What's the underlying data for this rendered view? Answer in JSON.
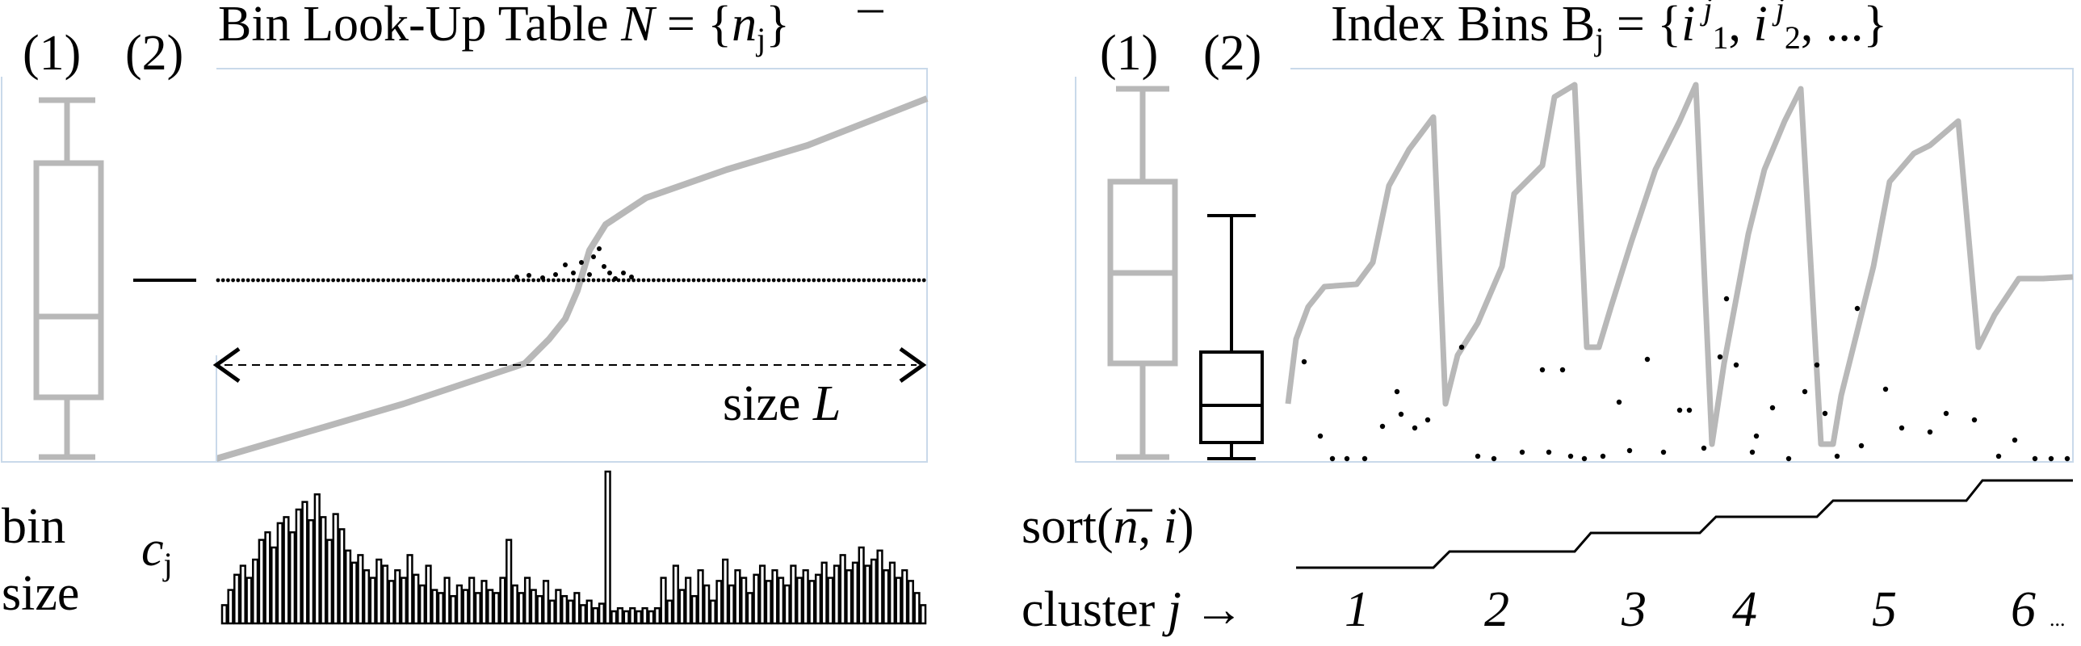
{
  "left_panel": {
    "label_1": "(1)",
    "label_2": "(2)",
    "title": {
      "prefix": "Bin Look-Up Table ",
      "N": "N",
      "equals": " = {",
      "n": "n",
      "sub_j": "j",
      "close": "}"
    },
    "size_label": {
      "text": "size ",
      "L": "L"
    },
    "bin_size": {
      "line1": "bin",
      "line2": "size"
    },
    "cj": {
      "c": "c",
      "sub_j": "j"
    },
    "histogram_values": [
      0.12,
      0.22,
      0.32,
      0.38,
      0.3,
      0.42,
      0.55,
      0.6,
      0.5,
      0.66,
      0.7,
      0.6,
      0.75,
      0.8,
      0.68,
      0.85,
      0.7,
      0.55,
      0.72,
      0.62,
      0.48,
      0.4,
      0.45,
      0.35,
      0.3,
      0.42,
      0.38,
      0.28,
      0.35,
      0.3,
      0.45,
      0.32,
      0.25,
      0.38,
      0.22,
      0.2,
      0.3,
      0.18,
      0.25,
      0.22,
      0.3,
      0.2,
      0.28,
      0.22,
      0.2,
      0.3,
      0.55,
      0.25,
      0.2,
      0.3,
      0.22,
      0.18,
      0.28,
      0.15,
      0.22,
      0.18,
      0.15,
      0.2,
      0.12,
      0.15,
      0.1,
      0.13,
      1.0,
      0.08,
      0.1,
      0.08,
      0.1,
      0.08,
      0.1,
      0.08,
      0.1,
      0.3,
      0.15,
      0.38,
      0.22,
      0.3,
      0.18,
      0.35,
      0.25,
      0.15,
      0.28,
      0.42,
      0.25,
      0.35,
      0.3,
      0.2,
      0.32,
      0.38,
      0.28,
      0.35,
      0.3,
      0.25,
      0.38,
      0.3,
      0.35,
      0.28,
      0.32,
      0.4,
      0.3,
      0.38,
      0.45,
      0.35,
      0.4,
      0.5,
      0.38,
      0.42,
      0.48,
      0.35,
      0.4,
      0.3,
      0.35,
      0.28,
      0.2,
      0.12
    ]
  },
  "right_panel": {
    "label_1": "(1)",
    "label_2": "(2)",
    "title": {
      "prefix": "Index Bins B",
      "sub_j": "j",
      "equals": " = {",
      "i1": "i",
      "sup_j1": "j",
      "sub_1": "1",
      "comma": ", ",
      "i2": "i",
      "sup_j2": "j",
      "sub_2": "2",
      "rest": ", ...}"
    },
    "sort_label": {
      "prefix": "sort(",
      "n": "n",
      "mid": ", ",
      "i": "i",
      "close": ")"
    },
    "cluster_label": {
      "text": "cluster ",
      "j": "j",
      "arrow": " →"
    },
    "clusters": [
      "1",
      "2",
      "3",
      "4",
      "5",
      "6"
    ],
    "ellipsis": "..."
  }
}
